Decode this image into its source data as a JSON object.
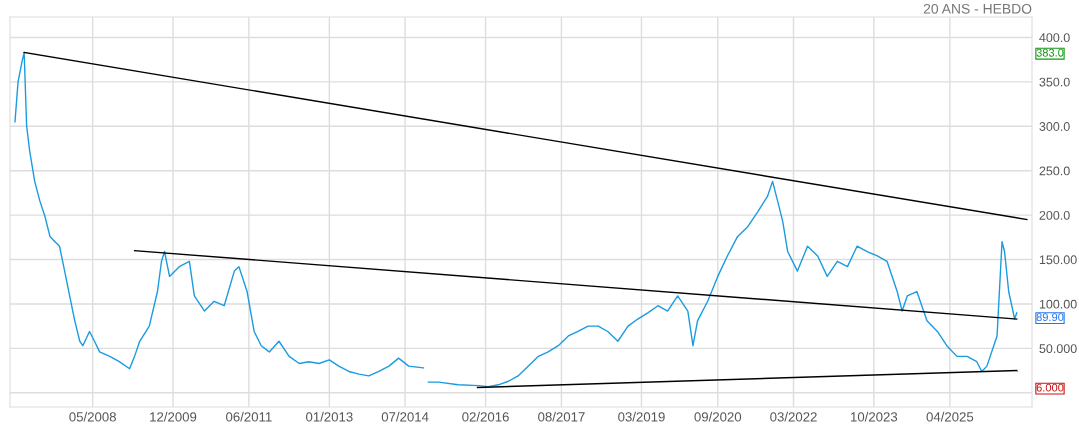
{
  "chart_data": {
    "type": "line",
    "title": "20 ANS - HEBDO",
    "xlim": [
      "2006-09-13",
      "2026-11-14"
    ],
    "ylim": [
      -16,
      423
    ],
    "xticks": [
      {
        "value": "2008-05-01",
        "label": "05/2008"
      },
      {
        "value": "2009-12-01",
        "label": "12/2009"
      },
      {
        "value": "2011-06-01",
        "label": "06/2011"
      },
      {
        "value": "2013-01-01",
        "label": "01/2013"
      },
      {
        "value": "2014-07-01",
        "label": "07/2014"
      },
      {
        "value": "2016-02-01",
        "label": "02/2016"
      },
      {
        "value": "2017-08-01",
        "label": "08/2017"
      },
      {
        "value": "2019-03-01",
        "label": "03/2019"
      },
      {
        "value": "2020-09-01",
        "label": "09/2020"
      },
      {
        "value": "2022-03-01",
        "label": "03/2022"
      },
      {
        "value": "2023-10-01",
        "label": "10/2023"
      },
      {
        "value": "2025-04-01",
        "label": "04/2025"
      }
    ],
    "yticks": [
      {
        "value": 0,
        "label": null
      },
      {
        "value": 50,
        "label": "50.000"
      },
      {
        "value": 100,
        "label": "100.00"
      },
      {
        "value": 150,
        "label": "150.00"
      },
      {
        "value": 200,
        "label": "200.0"
      },
      {
        "value": 250,
        "label": "250.0"
      },
      {
        "value": 300,
        "label": "300.0"
      },
      {
        "value": 350,
        "label": "350.0"
      },
      {
        "value": 400,
        "label": "400.0"
      }
    ],
    "grid": true,
    "marker": "none",
    "line_style": "solid",
    "series": [
      {
        "color": "#1a9be0",
        "x": [
          "2006-10-19",
          "2006-11-10",
          "2006-12-09",
          "2006-12-24",
          "2007-01-11",
          "2007-02-02",
          "2007-03-10",
          "2007-04-16",
          "2007-05-22",
          "2007-06-28",
          "2007-08-03",
          "2007-09-05",
          "2007-10-12",
          "2007-11-17",
          "2007-12-24",
          "2008-01-29",
          "2008-02-20",
          "2008-04-08",
          "2008-05-14",
          "2008-06-20",
          "2008-09-01",
          "2008-11-09",
          "2009-01-22",
          "2009-02-27",
          "2009-04-05",
          "2009-06-13",
          "2009-08-11",
          "2009-09-09",
          "2009-10-01",
          "2009-11-06",
          "2010-01-15",
          "2010-03-29",
          "2010-05-04",
          "2010-07-16",
          "2010-09-23",
          "2010-12-05",
          "2011-02-16",
          "2011-03-21",
          "2011-05-19",
          "2011-07-09",
          "2011-08-29",
          "2011-10-26",
          "2012-01-04",
          "2012-03-17",
          "2012-05-29",
          "2012-08-06",
          "2012-10-18",
          "2013-01-01",
          "2013-03-10",
          "2013-05-22",
          "2013-08-03",
          "2013-10-12",
          "2013-12-24",
          "2014-03-07",
          "2014-05-15",
          "2014-07-27",
          "2014-11-10",
          "2014-11-25",
          "2014-12-16",
          "2015-02-27",
          "2015-07-20",
          "2015-12-13",
          "2016-02-20",
          "2016-05-03",
          "2016-07-15",
          "2016-09-22",
          "2016-12-04",
          "2017-02-16",
          "2017-04-27",
          "2017-07-09",
          "2017-09-20",
          "2017-11-28",
          "2018-02-09",
          "2018-04-23",
          "2018-07-01",
          "2018-09-12",
          "2018-11-24",
          "2019-02-02",
          "2019-04-16",
          "2019-06-28",
          "2019-09-05",
          "2019-11-17",
          "2020-01-29",
          "2020-03-06",
          "2020-04-08",
          "2020-06-20",
          "2020-09-01",
          "2020-11-09",
          "2021-01-22",
          "2021-04-05",
          "2021-06-17",
          "2021-08-25",
          "2021-10-01",
          "2021-11-06",
          "2021-12-13",
          "2022-01-18",
          "2022-03-29",
          "2022-06-10",
          "2022-08-22",
          "2022-10-30",
          "2023-01-11",
          "2023-03-25",
          "2023-06-02",
          "2023-08-14",
          "2023-10-26",
          "2024-01-04",
          "2024-03-17",
          "2024-04-22",
          "2024-05-29",
          "2024-08-06",
          "2024-10-18",
          "2025-01-01",
          "2025-03-10",
          "2025-05-22",
          "2025-08-03",
          "2025-10-12",
          "2025-11-17",
          "2025-12-24",
          "2026-03-07",
          "2026-04-12",
          "2026-04-30",
          "2026-05-30",
          "2026-07-12",
          "2026-07-27"
        ],
        "values": [
          305,
          350,
          373,
          383,
          300,
          272,
          238,
          216,
          199,
          176,
          170,
          165,
          137,
          109,
          81,
          58,
          53,
          69,
          58,
          46,
          41,
          35,
          27,
          41,
          58,
          75,
          114,
          148,
          159,
          131,
          142,
          148,
          109,
          92,
          103,
          98,
          137,
          142,
          114,
          69,
          53,
          46,
          58,
          41,
          33,
          35,
          33,
          37,
          30,
          24,
          21,
          19,
          24,
          30,
          39,
          30,
          28,
          null,
          12,
          12,
          9,
          8,
          7,
          9,
          13,
          19,
          30,
          41,
          46,
          53,
          64,
          69,
          75,
          75,
          69,
          58,
          75,
          83,
          90,
          98,
          92,
          109,
          92,
          53,
          81,
          103,
          131,
          154,
          176,
          187,
          204,
          221,
          238,
          216,
          193,
          159,
          137,
          165,
          154,
          131,
          148,
          142,
          165,
          159,
          154,
          148,
          114,
          92,
          109,
          114,
          81,
          69,
          53,
          41,
          41,
          35,
          24,
          30,
          64,
          170,
          159,
          114,
          83,
          89.9
        ]
      },
      {
        "color": "#000000",
        "x": [
          "2006-12-24",
          "2026-10-08"
        ],
        "values": [
          383,
          195
        ]
      },
      {
        "color": "#000000",
        "x": [
          "2009-02-27",
          "2026-07-27"
        ],
        "values": [
          160,
          83
        ]
      },
      {
        "color": "#000000",
        "x": [
          "2015-12-05",
          "2026-07-27"
        ],
        "values": [
          6,
          25
        ]
      }
    ],
    "annotations": [
      "383.0",
      "89.90",
      "6.000"
    ]
  }
}
